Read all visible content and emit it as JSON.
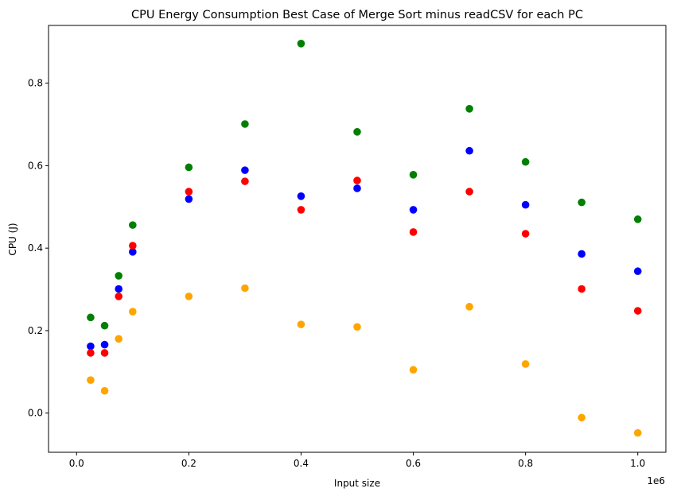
{
  "chart_data": {
    "type": "scatter",
    "title": "CPU Energy Consumption Best Case of Merge Sort minus readCSV for each PC",
    "xlabel": "Input size",
    "ylabel": "CPU (J)",
    "x_offset_label": "1e6",
    "xlim": [
      -50000,
      1050000
    ],
    "ylim": [
      -0.095,
      0.94
    ],
    "x_ticks": [
      0,
      200000,
      400000,
      600000,
      800000,
      1000000
    ],
    "x_tick_labels": [
      "0.0",
      "0.2",
      "0.4",
      "0.6",
      "0.8",
      "1.0"
    ],
    "y_ticks": [
      0.0,
      0.2,
      0.4,
      0.6,
      0.8
    ],
    "y_tick_labels": [
      "0.0",
      "0.2",
      "0.4",
      "0.6",
      "0.8"
    ],
    "grid": false,
    "x": [
      25000,
      50000,
      75000,
      100000,
      200000,
      300000,
      400000,
      500000,
      600000,
      700000,
      800000,
      900000,
      1000000
    ],
    "series": [
      {
        "color": "#008000",
        "values": [
          0.232,
          0.212,
          0.333,
          0.456,
          0.596,
          0.701,
          0.896,
          0.682,
          0.578,
          0.738,
          0.609,
          0.511,
          0.47
        ]
      },
      {
        "color": "#0000ff",
        "values": [
          0.162,
          0.166,
          0.301,
          0.391,
          0.519,
          0.589,
          0.526,
          0.545,
          0.493,
          0.636,
          0.505,
          0.386,
          0.344
        ]
      },
      {
        "color": "#ff0000",
        "values": [
          0.146,
          0.146,
          0.283,
          0.406,
          0.537,
          0.562,
          0.493,
          0.564,
          0.439,
          0.537,
          0.435,
          0.301,
          0.248
        ]
      },
      {
        "color": "#ffa500",
        "values": [
          0.08,
          0.054,
          0.18,
          0.246,
          0.283,
          0.303,
          0.215,
          0.209,
          0.105,
          0.258,
          0.119,
          -0.011,
          -0.048
        ]
      }
    ]
  }
}
